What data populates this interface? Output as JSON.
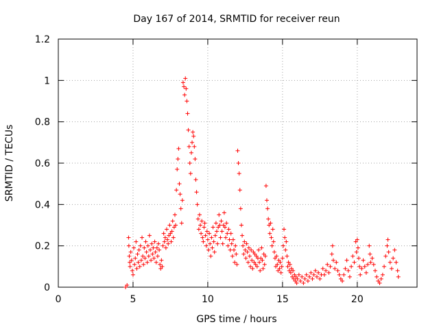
{
  "chart_data": {
    "type": "scatter",
    "title": "Day 167 of 2014, SRMTID for receiver reun",
    "xlabel": "GPS time / hours",
    "ylabel": "SRMTID / TECUs",
    "xlim": [
      0,
      24
    ],
    "ylim": [
      0,
      1.2
    ],
    "xticks": [
      0,
      5,
      10,
      15,
      20
    ],
    "xtick_labels": [
      "0",
      "5",
      "10",
      "15",
      "20"
    ],
    "yticks": [
      0,
      0.2,
      0.4,
      0.6,
      0.8,
      1,
      1.2
    ],
    "ytick_labels": [
      "0",
      "0.2",
      "0.4",
      "0.6",
      "0.8",
      "1",
      "1.2"
    ],
    "grid": true,
    "legend": "none",
    "marker": "plus",
    "series": [
      {
        "name": "SRMTID",
        "color": "#ff0000",
        "points": [
          [
            4.5,
            0.0
          ],
          [
            4.6,
            0.01
          ],
          [
            4.7,
            0.24
          ],
          [
            4.72,
            0.2
          ],
          [
            4.75,
            0.15
          ],
          [
            4.78,
            0.12
          ],
          [
            4.8,
            0.1
          ],
          [
            4.85,
            0.17
          ],
          [
            4.9,
            0.13
          ],
          [
            4.95,
            0.08
          ],
          [
            5.0,
            0.06
          ],
          [
            5.05,
            0.19
          ],
          [
            5.1,
            0.11
          ],
          [
            5.15,
            0.14
          ],
          [
            5.2,
            0.22
          ],
          [
            5.25,
            0.09
          ],
          [
            5.3,
            0.16
          ],
          [
            5.35,
            0.12
          ],
          [
            5.4,
            0.18
          ],
          [
            5.45,
            0.1
          ],
          [
            5.5,
            0.2
          ],
          [
            5.55,
            0.13
          ],
          [
            5.6,
            0.24
          ],
          [
            5.65,
            0.15
          ],
          [
            5.7,
            0.11
          ],
          [
            5.75,
            0.19
          ],
          [
            5.8,
            0.14
          ],
          [
            5.85,
            0.22
          ],
          [
            5.9,
            0.17
          ],
          [
            5.95,
            0.12
          ],
          [
            6.0,
            0.2
          ],
          [
            6.05,
            0.15
          ],
          [
            6.1,
            0.25
          ],
          [
            6.15,
            0.18
          ],
          [
            6.2,
            0.13
          ],
          [
            6.25,
            0.21
          ],
          [
            6.3,
            0.16
          ],
          [
            6.35,
            0.19
          ],
          [
            6.4,
            0.14
          ],
          [
            6.45,
            0.22
          ],
          [
            6.5,
            0.17
          ],
          [
            6.55,
            0.12
          ],
          [
            6.6,
            0.19
          ],
          [
            6.65,
            0.15
          ],
          [
            6.7,
            0.21
          ],
          [
            6.75,
            0.18
          ],
          [
            6.8,
            0.11
          ],
          [
            6.85,
            0.09
          ],
          [
            6.9,
            0.13
          ],
          [
            6.95,
            0.1
          ],
          [
            7.0,
            0.2
          ],
          [
            7.05,
            0.26
          ],
          [
            7.1,
            0.22
          ],
          [
            7.15,
            0.24
          ],
          [
            7.2,
            0.19
          ],
          [
            7.25,
            0.28
          ],
          [
            7.3,
            0.23
          ],
          [
            7.35,
            0.21
          ],
          [
            7.4,
            0.25
          ],
          [
            7.45,
            0.3
          ],
          [
            7.5,
            0.26
          ],
          [
            7.55,
            0.22
          ],
          [
            7.6,
            0.27
          ],
          [
            7.65,
            0.32
          ],
          [
            7.7,
            0.24
          ],
          [
            7.75,
            0.29
          ],
          [
            7.8,
            0.35
          ],
          [
            7.85,
            0.3
          ],
          [
            7.9,
            0.47
          ],
          [
            7.95,
            0.57
          ],
          [
            8.0,
            0.62
          ],
          [
            8.05,
            0.67
          ],
          [
            8.1,
            0.5
          ],
          [
            8.15,
            0.45
          ],
          [
            8.2,
            0.38
          ],
          [
            8.25,
            0.31
          ],
          [
            8.3,
            0.42
          ],
          [
            8.35,
            0.99
          ],
          [
            8.4,
            0.97
          ],
          [
            8.45,
            0.93
          ],
          [
            8.5,
            1.01
          ],
          [
            8.55,
            0.96
          ],
          [
            8.6,
            0.9
          ],
          [
            8.65,
            0.84
          ],
          [
            8.7,
            0.76
          ],
          [
            8.75,
            0.68
          ],
          [
            8.8,
            0.6
          ],
          [
            8.85,
            0.55
          ],
          [
            8.9,
            0.65
          ],
          [
            8.95,
            0.7
          ],
          [
            9.0,
            0.75
          ],
          [
            9.05,
            0.73
          ],
          [
            9.1,
            0.68
          ],
          [
            9.15,
            0.62
          ],
          [
            9.2,
            0.52
          ],
          [
            9.25,
            0.46
          ],
          [
            9.3,
            0.4
          ],
          [
            9.35,
            0.33
          ],
          [
            9.4,
            0.28
          ],
          [
            9.45,
            0.35
          ],
          [
            9.5,
            0.3
          ],
          [
            9.55,
            0.26
          ],
          [
            9.6,
            0.32
          ],
          [
            9.65,
            0.24
          ],
          [
            9.7,
            0.22
          ],
          [
            9.75,
            0.29
          ],
          [
            9.8,
            0.31
          ],
          [
            9.85,
            0.25
          ],
          [
            9.9,
            0.2
          ],
          [
            9.95,
            0.27
          ],
          [
            10.0,
            0.23
          ],
          [
            10.05,
            0.18
          ],
          [
            10.1,
            0.26
          ],
          [
            10.15,
            0.21
          ],
          [
            10.2,
            0.15
          ],
          [
            10.25,
            0.24
          ],
          [
            10.3,
            0.19
          ],
          [
            10.35,
            0.29
          ],
          [
            10.4,
            0.22
          ],
          [
            10.45,
            0.17
          ],
          [
            10.5,
            0.25
          ],
          [
            10.55,
            0.31
          ],
          [
            10.6,
            0.27
          ],
          [
            10.65,
            0.21
          ],
          [
            10.7,
            0.29
          ],
          [
            10.75,
            0.35
          ],
          [
            10.8,
            0.3
          ],
          [
            10.85,
            0.24
          ],
          [
            10.9,
            0.32
          ],
          [
            10.95,
            0.27
          ],
          [
            11.0,
            0.21
          ],
          [
            11.05,
            0.3
          ],
          [
            11.1,
            0.36
          ],
          [
            11.15,
            0.29
          ],
          [
            11.2,
            0.24
          ],
          [
            11.25,
            0.31
          ],
          [
            11.3,
            0.26
          ],
          [
            11.35,
            0.2
          ],
          [
            11.4,
            0.28
          ],
          [
            11.45,
            0.23
          ],
          [
            11.5,
            0.18
          ],
          [
            11.55,
            0.26
          ],
          [
            11.6,
            0.21
          ],
          [
            11.65,
            0.15
          ],
          [
            11.7,
            0.23
          ],
          [
            11.75,
            0.18
          ],
          [
            11.8,
            0.12
          ],
          [
            11.85,
            0.2
          ],
          [
            11.9,
            0.16
          ],
          [
            11.95,
            0.11
          ],
          [
            12.0,
            0.66
          ],
          [
            12.05,
            0.6
          ],
          [
            12.1,
            0.55
          ],
          [
            12.15,
            0.47
          ],
          [
            12.2,
            0.38
          ],
          [
            12.25,
            0.3
          ],
          [
            12.3,
            0.25
          ],
          [
            12.35,
            0.2
          ],
          [
            12.4,
            0.16
          ],
          [
            12.45,
            0.22
          ],
          [
            12.5,
            0.18
          ],
          [
            12.55,
            0.14
          ],
          [
            12.6,
            0.21
          ],
          [
            12.65,
            0.17
          ],
          [
            12.7,
            0.12
          ],
          [
            12.75,
            0.19
          ],
          [
            12.8,
            0.15
          ],
          [
            12.85,
            0.1
          ],
          [
            12.9,
            0.18
          ],
          [
            12.95,
            0.13
          ],
          [
            13.0,
            0.09
          ],
          [
            13.05,
            0.17
          ],
          [
            13.1,
            0.12
          ],
          [
            13.15,
            0.16
          ],
          [
            13.2,
            0.11
          ],
          [
            13.25,
            0.15
          ],
          [
            13.3,
            0.1
          ],
          [
            13.35,
            0.14
          ],
          [
            13.4,
            0.18
          ],
          [
            13.45,
            0.12
          ],
          [
            13.5,
            0.08
          ],
          [
            13.55,
            0.14
          ],
          [
            13.6,
            0.19
          ],
          [
            13.65,
            0.13
          ],
          [
            13.7,
            0.09
          ],
          [
            13.75,
            0.16
          ],
          [
            13.8,
            0.11
          ],
          [
            13.85,
            0.15
          ],
          [
            13.9,
            0.49
          ],
          [
            13.95,
            0.42
          ],
          [
            14.0,
            0.38
          ],
          [
            14.05,
            0.33
          ],
          [
            14.1,
            0.3
          ],
          [
            14.15,
            0.26
          ],
          [
            14.2,
            0.31
          ],
          [
            14.25,
            0.24
          ],
          [
            14.3,
            0.2
          ],
          [
            14.35,
            0.28
          ],
          [
            14.4,
            0.22
          ],
          [
            14.45,
            0.17
          ],
          [
            14.5,
            0.14
          ],
          [
            14.55,
            0.1
          ],
          [
            14.6,
            0.15
          ],
          [
            14.65,
            0.11
          ],
          [
            14.7,
            0.08
          ],
          [
            14.75,
            0.13
          ],
          [
            14.8,
            0.09
          ],
          [
            14.85,
            0.12
          ],
          [
            14.9,
            0.07
          ],
          [
            14.95,
            0.1
          ],
          [
            15.0,
            0.14
          ],
          [
            15.05,
            0.2
          ],
          [
            15.1,
            0.28
          ],
          [
            15.15,
            0.24
          ],
          [
            15.2,
            0.18
          ],
          [
            15.25,
            0.22
          ],
          [
            15.3,
            0.15
          ],
          [
            15.35,
            0.1
          ],
          [
            15.4,
            0.12
          ],
          [
            15.45,
            0.08
          ],
          [
            15.5,
            0.11
          ],
          [
            15.55,
            0.07
          ],
          [
            15.6,
            0.09
          ],
          [
            15.65,
            0.05
          ],
          [
            15.7,
            0.08
          ],
          [
            15.75,
            0.04
          ],
          [
            15.8,
            0.06
          ],
          [
            15.85,
            0.03
          ],
          [
            15.9,
            0.05
          ],
          [
            15.95,
            0.02
          ],
          [
            16.0,
            0.04
          ],
          [
            16.1,
            0.06
          ],
          [
            16.2,
            0.03
          ],
          [
            16.3,
            0.05
          ],
          [
            16.4,
            0.02
          ],
          [
            16.5,
            0.04
          ],
          [
            16.6,
            0.06
          ],
          [
            16.7,
            0.03
          ],
          [
            16.8,
            0.05
          ],
          [
            16.9,
            0.07
          ],
          [
            17.0,
            0.04
          ],
          [
            17.1,
            0.06
          ],
          [
            17.2,
            0.08
          ],
          [
            17.3,
            0.05
          ],
          [
            17.4,
            0.07
          ],
          [
            17.5,
            0.04
          ],
          [
            17.6,
            0.06
          ],
          [
            17.7,
            0.09
          ],
          [
            17.8,
            0.06
          ],
          [
            17.9,
            0.08
          ],
          [
            18.0,
            0.11
          ],
          [
            18.1,
            0.07
          ],
          [
            18.2,
            0.1
          ],
          [
            18.3,
            0.16
          ],
          [
            18.35,
            0.2
          ],
          [
            18.4,
            0.13
          ],
          [
            18.5,
            0.09
          ],
          [
            18.6,
            0.12
          ],
          [
            18.7,
            0.08
          ],
          [
            18.8,
            0.06
          ],
          [
            18.9,
            0.04
          ],
          [
            19.0,
            0.03
          ],
          [
            19.1,
            0.06
          ],
          [
            19.2,
            0.09
          ],
          [
            19.3,
            0.13
          ],
          [
            19.4,
            0.08
          ],
          [
            19.5,
            0.05
          ],
          [
            19.6,
            0.1
          ],
          [
            19.7,
            0.15
          ],
          [
            19.8,
            0.12
          ],
          [
            19.9,
            0.22
          ],
          [
            19.95,
            0.17
          ],
          [
            20.0,
            0.23
          ],
          [
            20.05,
            0.19
          ],
          [
            20.1,
            0.14
          ],
          [
            20.15,
            0.1
          ],
          [
            20.2,
            0.06
          ],
          [
            20.3,
            0.09
          ],
          [
            20.4,
            0.13
          ],
          [
            20.5,
            0.1
          ],
          [
            20.6,
            0.07
          ],
          [
            20.7,
            0.11
          ],
          [
            20.8,
            0.2
          ],
          [
            20.85,
            0.16
          ],
          [
            20.9,
            0.12
          ],
          [
            21.0,
            0.14
          ],
          [
            21.1,
            0.11
          ],
          [
            21.2,
            0.08
          ],
          [
            21.3,
            0.05
          ],
          [
            21.4,
            0.03
          ],
          [
            21.5,
            0.02
          ],
          [
            21.6,
            0.04
          ],
          [
            21.7,
            0.06
          ],
          [
            21.8,
            0.1
          ],
          [
            21.9,
            0.15
          ],
          [
            22.0,
            0.2
          ],
          [
            22.05,
            0.23
          ],
          [
            22.1,
            0.17
          ],
          [
            22.2,
            0.12
          ],
          [
            22.3,
            0.09
          ],
          [
            22.4,
            0.14
          ],
          [
            22.5,
            0.18
          ],
          [
            22.6,
            0.12
          ],
          [
            22.7,
            0.08
          ],
          [
            22.75,
            0.05
          ]
        ]
      }
    ]
  }
}
